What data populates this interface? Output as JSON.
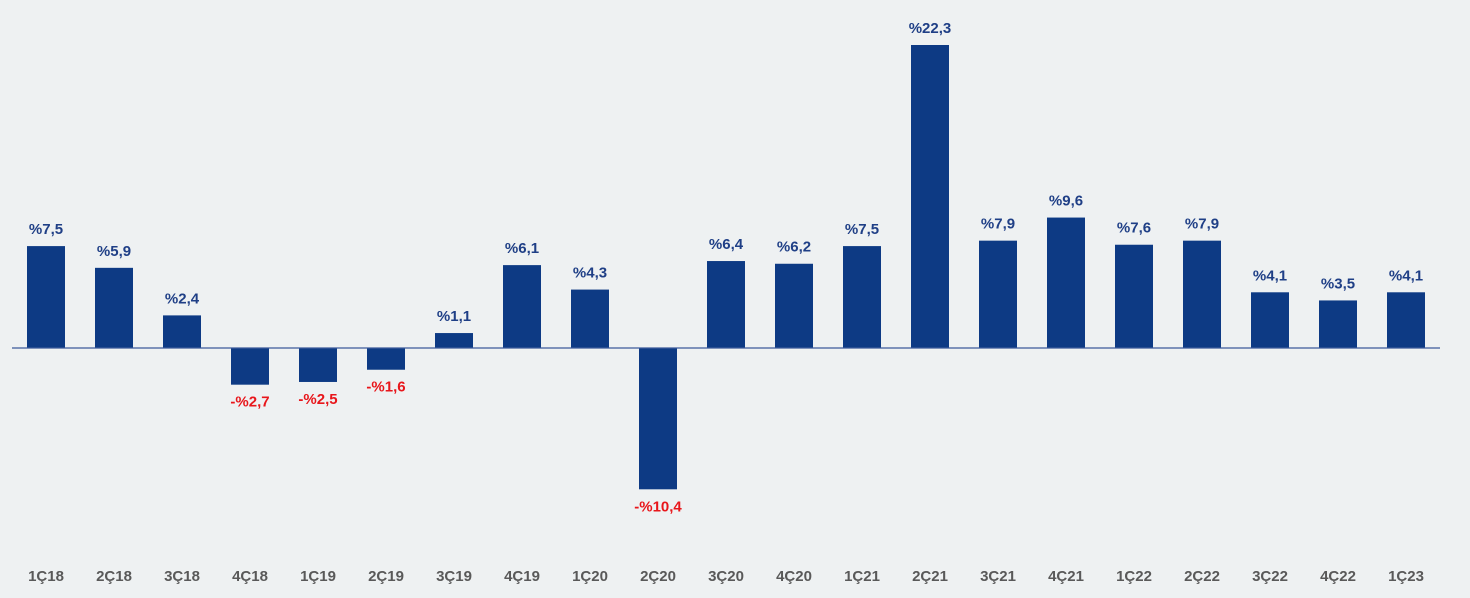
{
  "chart_data": {
    "type": "bar",
    "categories": [
      "1Ç18",
      "2Ç18",
      "3Ç18",
      "4Ç18",
      "1Ç19",
      "2Ç19",
      "3Ç19",
      "4Ç19",
      "1Ç20",
      "2Ç20",
      "3Ç20",
      "4Ç20",
      "1Ç21",
      "2Ç21",
      "3Ç21",
      "4Ç21",
      "1Ç22",
      "2Ç22",
      "3Ç22",
      "4Ç22",
      "1Ç23"
    ],
    "values": [
      7.5,
      5.9,
      2.4,
      -2.7,
      -2.5,
      -1.6,
      1.1,
      6.1,
      4.3,
      -10.4,
      6.4,
      6.2,
      7.5,
      22.3,
      7.9,
      9.6,
      7.6,
      7.9,
      4.1,
      3.5,
      4.1
    ],
    "value_labels": [
      "%7,5",
      "%5,9",
      "%2,4",
      "-%2,7",
      "-%2,5",
      "-%1,6",
      "%1,1",
      "%6,1",
      "%4,3",
      "-%10,4",
      "%6,4",
      "%6,2",
      "%7,5",
      "%22,3",
      "%7,9",
      "%9,6",
      "%7,6",
      "%7,9",
      "%4,1",
      "%3,5",
      "%4,1"
    ],
    "color": "#0d3a84",
    "positive_label_color": "#1f3f86",
    "negative_label_color": "#e8161b",
    "category_color": "#595959"
  }
}
